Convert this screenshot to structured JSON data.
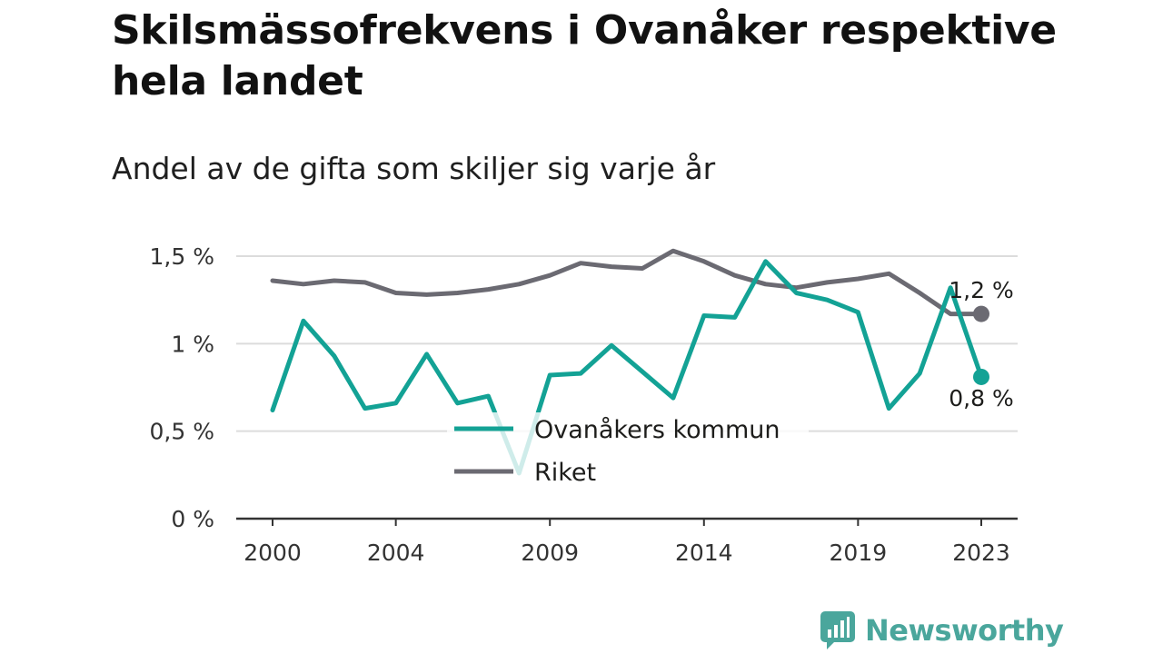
{
  "title": "Skilsmässofrekvens i Ovanåker respektive hela landet",
  "subtitle": "Andel av de gifta som skiljer sig varje år",
  "brand": "Newsworthy",
  "colors": {
    "ovanaker": "#13a295",
    "riket": "#6b6a72",
    "grid": "#dcdcdc",
    "axis": "#333333",
    "brand": "#4aa69c"
  },
  "chart_data": {
    "type": "line",
    "x": [
      2000,
      2001,
      2002,
      2003,
      2004,
      2005,
      2006,
      2007,
      2008,
      2009,
      2010,
      2011,
      2012,
      2013,
      2014,
      2015,
      2016,
      2017,
      2018,
      2019,
      2020,
      2021,
      2022,
      2023
    ],
    "x_ticks": [
      "2000",
      "2004",
      "2009",
      "2014",
      "2019",
      "2023"
    ],
    "y_ticks": [
      {
        "value": 0,
        "label": "0 %"
      },
      {
        "value": 0.5,
        "label": "0,5 %"
      },
      {
        "value": 1,
        "label": "1 %"
      },
      {
        "value": 1.5,
        "label": "1,5 %"
      }
    ],
    "ylim": [
      0,
      1.5
    ],
    "grid": true,
    "legend_position": "bottom-center",
    "series": [
      {
        "name": "Ovanåkers kommun",
        "color": "#13a295",
        "values": [
          0.62,
          1.13,
          0.93,
          0.63,
          0.66,
          0.94,
          0.66,
          0.7,
          0.26,
          0.82,
          0.83,
          0.99,
          0.84,
          0.69,
          1.16,
          1.15,
          1.47,
          1.29,
          1.25,
          1.18,
          0.63,
          0.83,
          1.32,
          0.81
        ],
        "end_label": "0,8 %"
      },
      {
        "name": "Riket",
        "color": "#6b6a72",
        "values": [
          1.36,
          1.34,
          1.36,
          1.35,
          1.29,
          1.28,
          1.29,
          1.31,
          1.34,
          1.39,
          1.46,
          1.44,
          1.43,
          1.53,
          1.47,
          1.39,
          1.34,
          1.32,
          1.35,
          1.37,
          1.4,
          1.29,
          1.17,
          1.17
        ],
        "end_label": "1,2 %"
      }
    ]
  }
}
